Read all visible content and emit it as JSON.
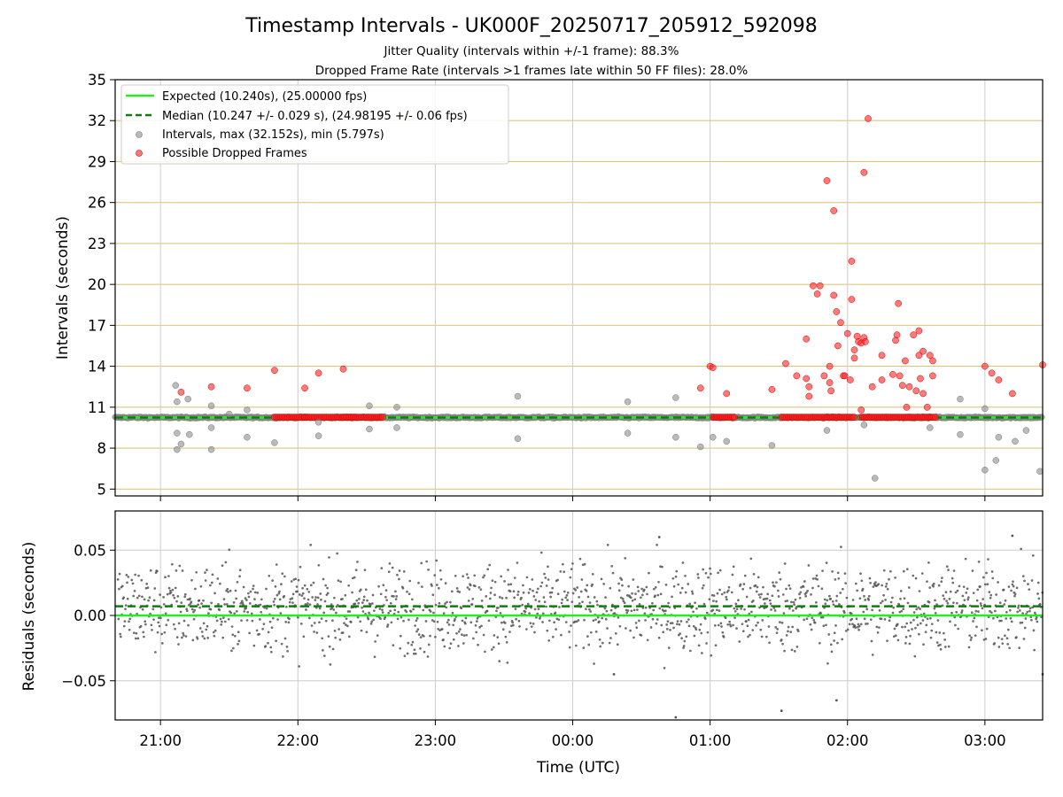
{
  "title": "Timestamp Intervals - UK000F_20250717_205912_592098",
  "subtitle_1": "Jitter Quality (intervals within +/-1 frame): 88.3%",
  "subtitle_2": "Dropped Frame Rate (intervals >1 frames late within 50 FF files): 28.0%",
  "colors": {
    "expected": "#22ee22",
    "median": "#117a11",
    "interval_points": "#8c8c8c",
    "dropped_points": "#ff2222",
    "residual_points": "#555555",
    "hgrid": "#d6b85a",
    "vgrid": "#cccccc"
  },
  "chart_data": [
    {
      "type": "scatter",
      "name": "intervals",
      "ylabel": "Intervals (seconds)",
      "ylim": [
        4.5,
        35
      ],
      "yticks": [
        "5",
        "8",
        "11",
        "14",
        "17",
        "20",
        "23",
        "26",
        "29",
        "32",
        "35"
      ],
      "x_unit": "hours since 21:00 UTC",
      "xlim": [
        -0.33,
        6.42
      ],
      "grid": "horizontal grid at every tick, vertical grid at every hour",
      "legend_position": "upper left",
      "legend": [
        "Expected (10.240s), (25.00000 fps)",
        "Median (10.247 +/- 0.029 s), (24.98195 +/- 0.06 fps)",
        "Intervals, max (32.152s), min (5.797s)",
        "Possible Dropped Frames"
      ],
      "expected_value": 10.24,
      "median_value": 10.247,
      "baseline_segments": [
        [
          -0.33,
          6.42
        ]
      ],
      "dropped_baseline_segments": [
        [
          0.83,
          1.08
        ],
        [
          1.05,
          1.43
        ],
        [
          1.33,
          1.62
        ],
        [
          4.02,
          4.18
        ],
        [
          4.52,
          5.05
        ],
        [
          5.1,
          5.65
        ]
      ],
      "gray_outliers": [
        [
          0.11,
          12.6
        ],
        [
          0.12,
          11.4
        ],
        [
          0.12,
          9.1
        ],
        [
          0.12,
          7.9
        ],
        [
          0.15,
          8.3
        ],
        [
          0.2,
          11.6
        ],
        [
          0.21,
          9.0
        ],
        [
          0.37,
          11.1
        ],
        [
          0.37,
          9.5
        ],
        [
          0.37,
          7.9
        ],
        [
          0.5,
          10.5
        ],
        [
          0.63,
          10.8
        ],
        [
          0.63,
          8.8
        ],
        [
          0.83,
          8.4
        ],
        [
          1.15,
          9.9
        ],
        [
          1.15,
          8.9
        ],
        [
          1.52,
          11.1
        ],
        [
          1.52,
          9.4
        ],
        [
          1.72,
          11.0
        ],
        [
          1.72,
          9.5
        ],
        [
          2.6,
          11.8
        ],
        [
          2.6,
          8.7
        ],
        [
          3.4,
          11.4
        ],
        [
          3.4,
          9.1
        ],
        [
          3.75,
          11.7
        ],
        [
          3.75,
          8.8
        ],
        [
          3.93,
          8.1
        ],
        [
          4.02,
          8.8
        ],
        [
          4.12,
          8.5
        ],
        [
          4.45,
          8.2
        ],
        [
          4.85,
          9.3
        ],
        [
          5.12,
          9.7
        ],
        [
          5.2,
          5.8
        ],
        [
          5.6,
          9.5
        ],
        [
          5.82,
          11.6
        ],
        [
          5.82,
          9.0
        ],
        [
          6.0,
          10.9
        ],
        [
          6.0,
          6.4
        ],
        [
          6.08,
          7.1
        ],
        [
          6.1,
          8.8
        ],
        [
          6.22,
          8.5
        ],
        [
          6.3,
          9.3
        ],
        [
          6.4,
          6.3
        ]
      ],
      "dropped_outliers": [
        [
          0.15,
          12.1
        ],
        [
          0.37,
          12.5
        ],
        [
          0.63,
          12.4
        ],
        [
          0.83,
          13.7
        ],
        [
          1.05,
          12.4
        ],
        [
          1.15,
          13.5
        ],
        [
          1.33,
          13.8
        ],
        [
          4.0,
          14.0
        ],
        [
          4.02,
          13.9
        ],
        [
          4.12,
          12.0
        ],
        [
          3.93,
          12.4
        ],
        [
          4.45,
          12.3
        ],
        [
          4.55,
          14.2
        ],
        [
          4.63,
          13.3
        ],
        [
          4.7,
          16.0
        ],
        [
          4.7,
          13.1
        ],
        [
          4.72,
          12.5
        ],
        [
          4.75,
          19.9
        ],
        [
          4.78,
          19.3
        ],
        [
          4.8,
          19.9
        ],
        [
          4.83,
          13.3
        ],
        [
          4.85,
          27.6
        ],
        [
          4.87,
          14.0
        ],
        [
          4.87,
          12.8
        ],
        [
          4.9,
          19.2
        ],
        [
          4.9,
          25.4
        ],
        [
          4.92,
          18.0
        ],
        [
          4.93,
          15.5
        ],
        [
          4.95,
          17.2
        ],
        [
          4.97,
          13.3
        ],
        [
          4.98,
          13.3
        ],
        [
          5.0,
          16.4
        ],
        [
          5.02,
          13.0
        ],
        [
          5.03,
          18.9
        ],
        [
          5.03,
          21.7
        ],
        [
          5.05,
          15.2
        ],
        [
          5.05,
          14.6
        ],
        [
          5.07,
          16.2
        ],
        [
          5.08,
          15.8
        ],
        [
          5.1,
          15.7
        ],
        [
          5.1,
          10.8
        ],
        [
          5.12,
          16.1
        ],
        [
          5.12,
          28.2
        ],
        [
          5.13,
          15.8
        ],
        [
          5.15,
          32.15
        ],
        [
          5.18,
          12.5
        ],
        [
          5.25,
          14.8
        ],
        [
          5.33,
          13.4
        ],
        [
          5.35,
          15.9
        ],
        [
          5.36,
          16.3
        ],
        [
          5.37,
          18.6
        ],
        [
          5.38,
          13.3
        ],
        [
          5.4,
          12.6
        ],
        [
          5.42,
          14.4
        ],
        [
          5.43,
          11.0
        ],
        [
          5.48,
          16.3
        ],
        [
          5.5,
          12.2
        ],
        [
          5.52,
          14.8
        ],
        [
          5.52,
          16.6
        ],
        [
          5.55,
          15.1
        ],
        [
          5.58,
          11.0
        ],
        [
          5.6,
          14.8
        ],
        [
          5.62,
          14.4
        ],
        [
          5.62,
          13.3
        ],
        [
          6.0,
          14.0
        ],
        [
          6.05,
          13.5
        ],
        [
          6.1,
          13.0
        ],
        [
          6.2,
          12.0
        ],
        [
          6.42,
          14.1
        ],
        [
          4.88,
          12.2
        ],
        [
          4.72,
          11.8
        ],
        [
          5.53,
          13.1
        ],
        [
          5.55,
          12.0
        ],
        [
          5.45,
          12.5
        ],
        [
          5.25,
          13.0
        ]
      ]
    },
    {
      "type": "scatter",
      "name": "residuals",
      "ylabel": "Residuals (seconds)",
      "xlabel": "Time (UTC)",
      "ylim": [
        -0.08,
        0.08
      ],
      "yticks": [
        "0.05",
        "0.00",
        "−0.05"
      ],
      "ytick_values": [
        0.05,
        0.0,
        -0.05
      ],
      "xticks": [
        "21:00",
        "22:00",
        "23:00",
        "00:00",
        "01:00",
        "02:00",
        "03:00"
      ],
      "xtick_values": [
        0,
        1,
        2,
        3,
        4,
        5,
        6
      ],
      "xlim": [
        -0.33,
        6.42
      ],
      "expected_value": 0.0,
      "median_value": 0.007,
      "residual_range": [
        -0.035,
        0.045
      ],
      "notable_outliers": [
        [
          3.63,
          0.06
        ],
        [
          3.3,
          -0.045
        ],
        [
          4.92,
          -0.065
        ],
        [
          4.52,
          -0.073
        ],
        [
          3.75,
          -0.078
        ],
        [
          6.2,
          0.061
        ],
        [
          6.42,
          -0.045
        ]
      ]
    }
  ]
}
